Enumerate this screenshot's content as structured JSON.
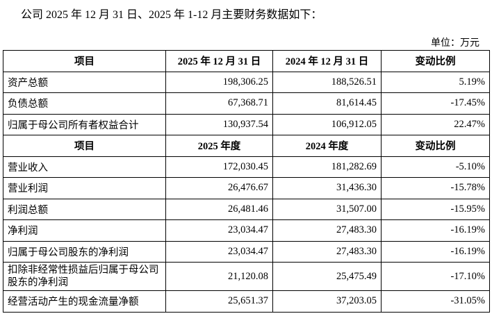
{
  "intro": "公司 2025 年 12 月 31 日、2025 年 1-12 月主要财务数据如下：",
  "unit": "单位：万元",
  "balance_header": [
    "项目",
    "2025 年 12 月 31 日",
    "2024 年 12 月 31 日",
    "变动比例"
  ],
  "balance_rows": [
    [
      "资产总额",
      "198,306.25",
      "188,526.51",
      "5.19%"
    ],
    [
      "负债总额",
      "67,368.71",
      "81,614.45",
      "-17.45%"
    ],
    [
      "归属于母公司所有者权益合计",
      "130,937.54",
      "106,912.05",
      "22.47%"
    ]
  ],
  "income_header": [
    "项目",
    "2025 年度",
    "2024 年度",
    "变动比例"
  ],
  "income_rows": [
    [
      "营业收入",
      "172,030.45",
      "181,282.69",
      "-5.10%"
    ],
    [
      "营业利润",
      "26,476.67",
      "31,436.30",
      "-15.78%"
    ],
    [
      "利润总额",
      "26,481.46",
      "31,507.00",
      "-15.95%"
    ],
    [
      "净利润",
      "23,034.47",
      "27,483.30",
      "-16.19%"
    ],
    [
      "归属于母公司股东的净利润",
      "23,034.47",
      "27,483.30",
      "-16.19%"
    ],
    [
      "扣除非经常性损益后归属于母公司股东的净利润",
      "21,120.08",
      "25,475.49",
      "-17.10%"
    ],
    [
      "经营活动产生的现金流量净额",
      "25,651.37",
      "37,203.05",
      "-31.05%"
    ]
  ]
}
